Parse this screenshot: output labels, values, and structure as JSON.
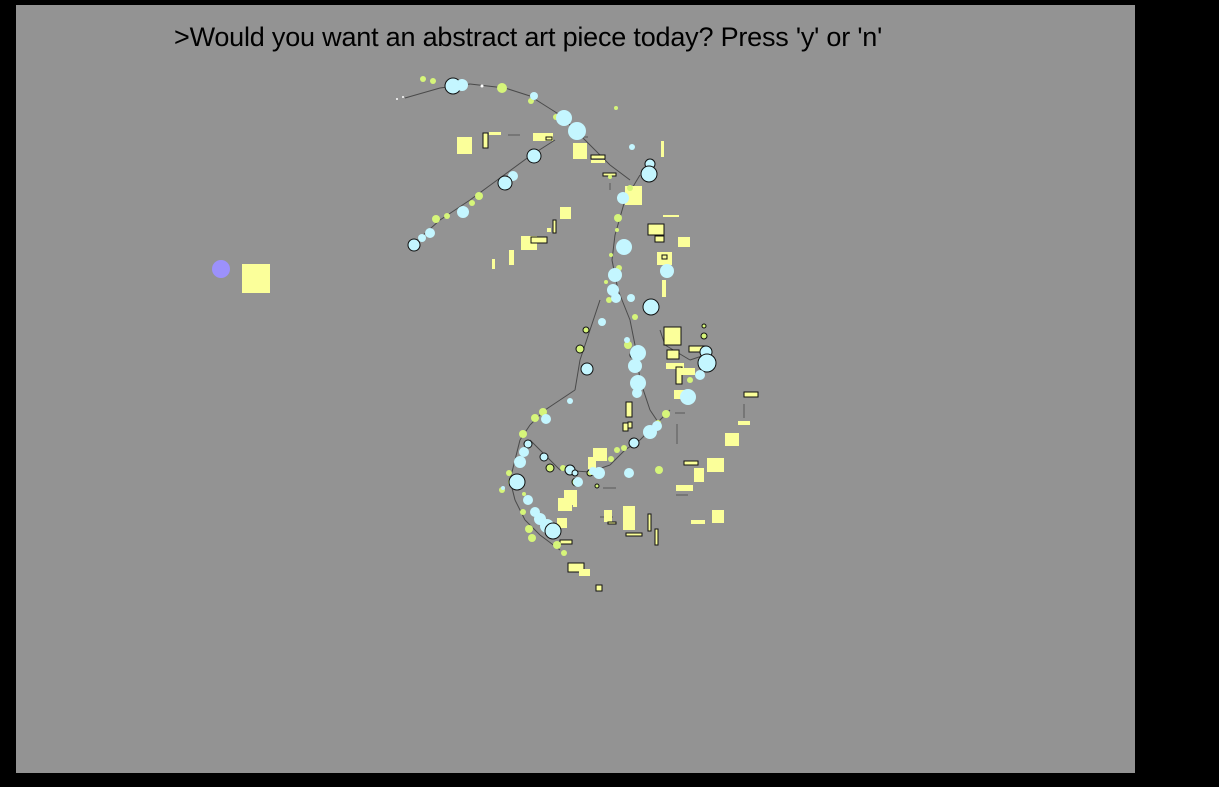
{
  "prompt": {
    "text": ">Would you want an abstract art piece today? Press 'y' or 'n'"
  },
  "colors": {
    "page_background": "#000000",
    "canvas_background": "#939393",
    "cyan": "#c4f6ff",
    "yellow": "#fbff9a",
    "green": "#d6f57a",
    "swatch_circle": "#9c91fb",
    "stroke": "#111111"
  }
}
